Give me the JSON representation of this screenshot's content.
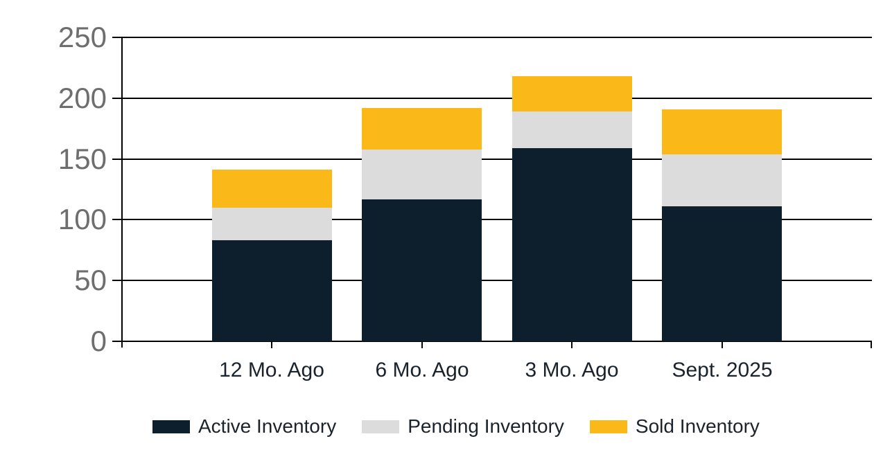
{
  "chart_data": {
    "type": "bar",
    "stacked": true,
    "title": "",
    "categories": [
      "12 Mo. Ago",
      "6 Mo. Ago",
      "3 Mo. Ago",
      "Sept. 2025"
    ],
    "series": [
      {
        "name": "Active Inventory",
        "color": "#0d1f2d",
        "values": [
          83,
          117,
          159,
          111
        ]
      },
      {
        "name": "Pending Inventory",
        "color": "#dcdcdc",
        "values": [
          27,
          41,
          30,
          43
        ]
      },
      {
        "name": "Sold Inventory",
        "color": "#fbb819",
        "values": [
          31,
          34,
          29,
          37
        ]
      }
    ],
    "xlabel": "",
    "ylabel": "",
    "ylim": [
      0,
      250
    ],
    "yticks": [
      0,
      50,
      100,
      150,
      200,
      250
    ],
    "grid": true,
    "legend_position": "bottom"
  },
  "colors": {
    "background": "#ffffff",
    "gridline": "#000000",
    "axis": "#000000",
    "y_label_text": "#6e6e6e",
    "x_label_text": "#1a232c",
    "legend_text": "#1a232c"
  }
}
